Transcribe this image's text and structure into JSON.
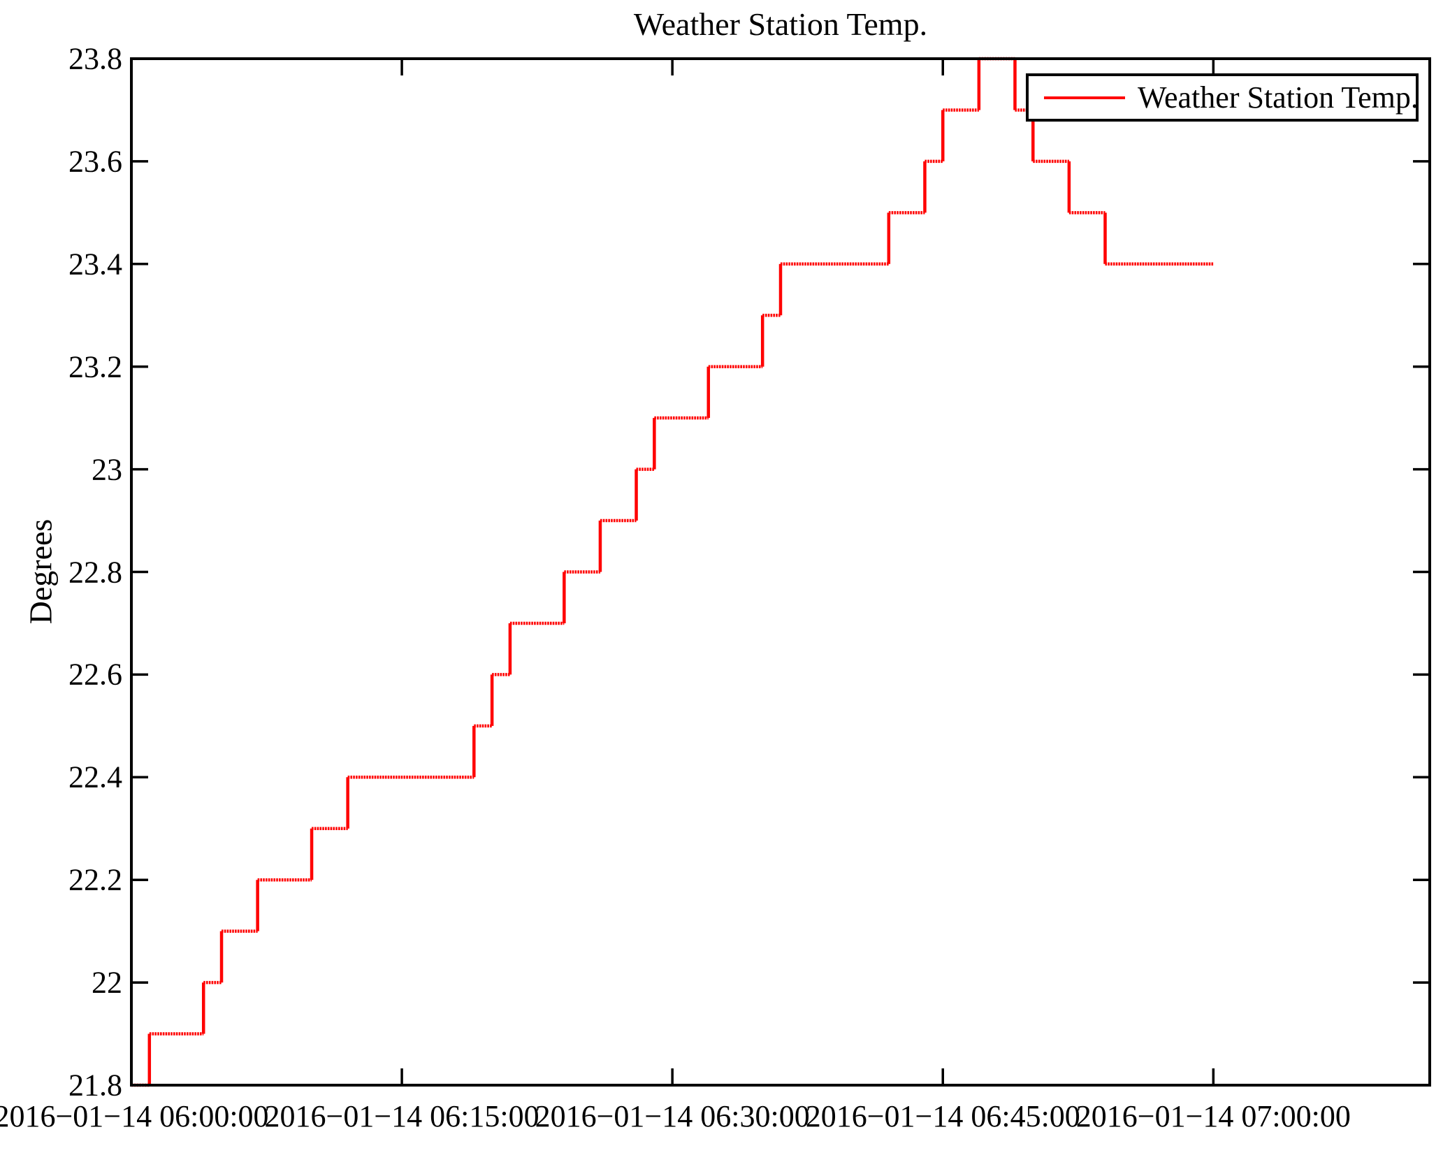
{
  "chart_data": {
    "type": "line",
    "subtype": "step-post",
    "title": "Weather Station Temp.",
    "background": "#ffffff",
    "axis_color": "#000000",
    "grid": false,
    "legend": {
      "label": "Weather Station Temp.",
      "position": "top-right",
      "line_color": "#ff0000"
    },
    "x_axis": {
      "label": "",
      "range": [
        "2016-01-14 06:00:00",
        "2016-01-14 07:12:00"
      ],
      "ticks": [
        {
          "t": "06:00:00",
          "label": "2016−01−14 06:00:00"
        },
        {
          "t": "06:15:00",
          "label": "2016−01−14 06:15:00"
        },
        {
          "t": "06:30:00",
          "label": "2016−01−14 06:30:00"
        },
        {
          "t": "06:45:00",
          "label": "2016−01−14 06:45:00"
        },
        {
          "t": "07:00:00",
          "label": "2016−01−14 07:00:00"
        }
      ]
    },
    "y_axis": {
      "label": "Degrees",
      "min": 21.8,
      "max": 23.8,
      "ticks": [
        {
          "v": 23.8,
          "label": "23.8"
        },
        {
          "v": 23.6,
          "label": "23.6"
        },
        {
          "v": 23.4,
          "label": "23.4"
        },
        {
          "v": 23.2,
          "label": "23.2"
        },
        {
          "v": 23.0,
          "label": "23"
        },
        {
          "v": 22.8,
          "label": "22.8"
        },
        {
          "v": 22.6,
          "label": "22.6"
        },
        {
          "v": 22.4,
          "label": "22.4"
        },
        {
          "v": 22.2,
          "label": "22.2"
        },
        {
          "v": 22.0,
          "label": "22"
        },
        {
          "v": 21.8,
          "label": "21.8"
        }
      ]
    },
    "series": [
      {
        "name": "Weather Station Temp.",
        "color": "#ff0000",
        "step": "post",
        "points": [
          {
            "t": "06:00:00",
            "v": 21.8
          },
          {
            "t": "06:01:00",
            "v": 21.9
          },
          {
            "t": "06:04:00",
            "v": 22.0
          },
          {
            "t": "06:05:00",
            "v": 22.1
          },
          {
            "t": "06:07:00",
            "v": 22.2
          },
          {
            "t": "06:10:00",
            "v": 22.3
          },
          {
            "t": "06:12:00",
            "v": 22.4
          },
          {
            "t": "06:19:00",
            "v": 22.5
          },
          {
            "t": "06:20:00",
            "v": 22.6
          },
          {
            "t": "06:21:00",
            "v": 22.7
          },
          {
            "t": "06:24:00",
            "v": 22.8
          },
          {
            "t": "06:26:00",
            "v": 22.9
          },
          {
            "t": "06:28:00",
            "v": 23.0
          },
          {
            "t": "06:29:00",
            "v": 23.1
          },
          {
            "t": "06:32:00",
            "v": 23.2
          },
          {
            "t": "06:35:00",
            "v": 23.3
          },
          {
            "t": "06:36:00",
            "v": 23.4
          },
          {
            "t": "06:42:00",
            "v": 23.5
          },
          {
            "t": "06:44:00",
            "v": 23.6
          },
          {
            "t": "06:45:00",
            "v": 23.7
          },
          {
            "t": "06:47:00",
            "v": 23.8
          },
          {
            "t": "06:49:00",
            "v": 23.7
          },
          {
            "t": "06:50:00",
            "v": 23.6
          },
          {
            "t": "06:52:00",
            "v": 23.5
          },
          {
            "t": "06:54:00",
            "v": 23.4
          },
          {
            "t": "07:00:00",
            "v": 23.4
          }
        ]
      }
    ]
  }
}
